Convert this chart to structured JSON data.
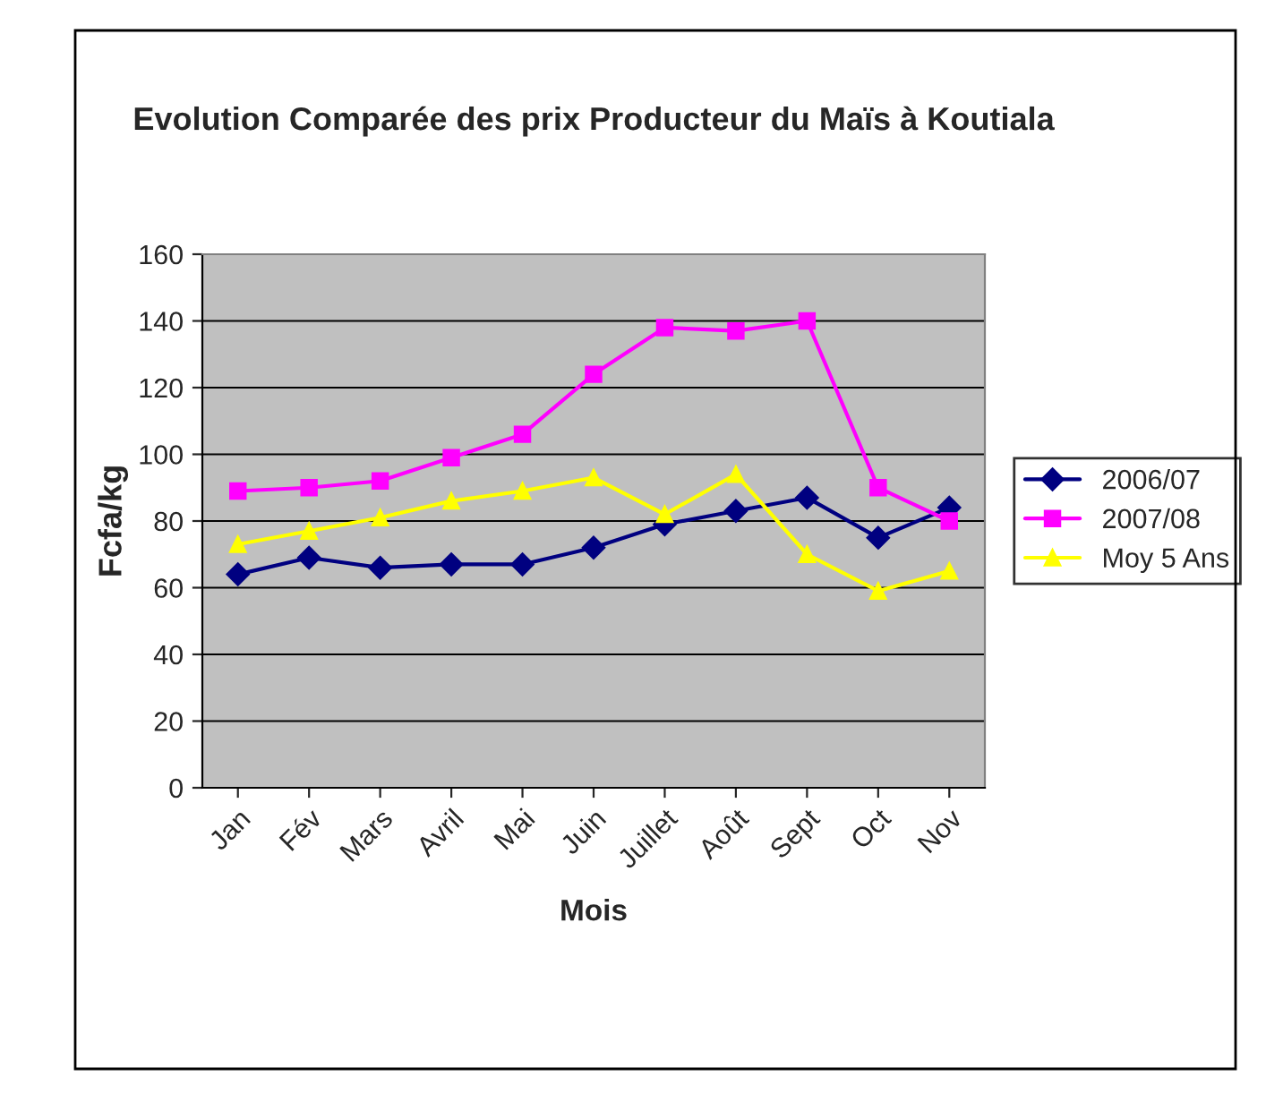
{
  "chart_data": {
    "type": "line",
    "title": "Evolution Comparée des prix Producteur du Maïs à Koutiala",
    "xlabel": "Mois",
    "ylabel": "Fcfa/kg",
    "categories": [
      "Jan",
      "Fév",
      "Mars",
      "Avril",
      "Mai",
      "Juin",
      "Juillet",
      "Août",
      "Sept",
      "Oct",
      "Nov"
    ],
    "series": [
      {
        "name": "2006/07",
        "color": "#000080",
        "marker": "diamond",
        "values": [
          64,
          69,
          66,
          67,
          67,
          72,
          79,
          83,
          87,
          75,
          84
        ]
      },
      {
        "name": "2007/08",
        "color": "#ff00ff",
        "marker": "square",
        "values": [
          89,
          90,
          92,
          99,
          106,
          124,
          138,
          137,
          140,
          90,
          80
        ]
      },
      {
        "name": "Moy 5 Ans",
        "color": "#ffff00",
        "marker": "triangle",
        "values": [
          73,
          77,
          81,
          86,
          89,
          93,
          82,
          94,
          70,
          59,
          65
        ]
      }
    ],
    "ylim": [
      0,
      160
    ],
    "yticks": [
      0,
      20,
      40,
      60,
      80,
      100,
      120,
      140,
      160
    ],
    "grid": "y",
    "legend": "right"
  }
}
